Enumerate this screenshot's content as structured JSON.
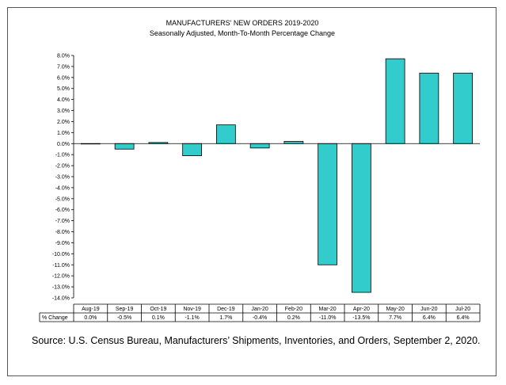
{
  "chart_data": {
    "type": "bar",
    "title": "MANUFACTURERS' NEW ORDERS 2019-2020",
    "subtitle": "Seasonally Adjusted,  Month-To-Month Percentage Change",
    "categories": [
      "Aug-19",
      "Sep-19",
      "Oct-19",
      "Nov-19",
      "Dec-19",
      "Jan-20",
      "Feb-20",
      "Mar-20",
      "Apr-20",
      "May-20",
      "Jun-20",
      "Jul-20"
    ],
    "values": [
      0.0,
      -0.5,
      0.1,
      -1.1,
      1.7,
      -0.4,
      0.2,
      -11.0,
      -13.5,
      7.7,
      6.4,
      6.4
    ],
    "value_labels": [
      "0.0%",
      "-0.5%",
      "0.1%",
      "-1.1%",
      "1.7%",
      "-0.4%",
      "0.2%",
      "-11.0%",
      "-13.5%",
      "7.7%",
      "6.4%",
      "6.4%"
    ],
    "row_label": "% Change",
    "ylim": [
      -14,
      8
    ],
    "ytick_labels": [
      "8.0%",
      "7.0%",
      "6.0%",
      "5.0%",
      "4.0%",
      "3.0%",
      "2.0%",
      "1.0%",
      "0.0%",
      "-1.0%",
      "-2.0%",
      "-3.0%",
      "-4.0%",
      "-5.0%",
      "-6.0%",
      "-7.0%",
      "-8.0%",
      "-9.0%",
      "-10.0%",
      "-11.0%",
      "-12.0%",
      "-13.0%",
      "-14.0%"
    ],
    "bar_color": "#33CCCC",
    "grid": false,
    "legend": "none"
  },
  "source_text": "Source: U.S. Census Bureau, Manufacturers’ Shipments, Inventories, and Orders, September 2, 2020."
}
